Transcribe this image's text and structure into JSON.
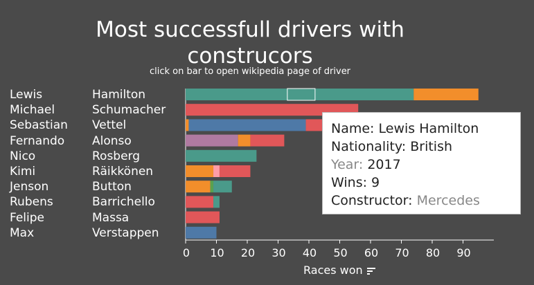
{
  "title_line1": "Most successfull drivers with",
  "title_line2": "construcors",
  "subtitle": "click on bar to open wikipedia page of driver",
  "xlabel": "Races won",
  "tooltip": {
    "name_label": "Name:",
    "name_value": "Lewis Hamilton",
    "nationality_label": "Nationality:",
    "nationality_value": "British",
    "year_label": "Year:",
    "year_value": "2017",
    "wins_label": "Wins:",
    "wins_value": "9",
    "constructor_label": "Constructor:",
    "constructor_value": "Mercedes"
  },
  "colors": {
    "background": "#4a4a4a",
    "mercedes_teal": "#4a9a8a",
    "orange": "#f28e2b",
    "red": "#e15759",
    "blue": "#4e79a7",
    "purple": "#b07aa1",
    "pink": "#ff9da7",
    "green": "#59a14f"
  },
  "chart_data": {
    "type": "bar",
    "orientation": "horizontal",
    "stacked": true,
    "xlabel": "Races won",
    "xlim": [
      0,
      100
    ],
    "xticks": [
      0,
      10,
      20,
      30,
      40,
      50,
      60,
      70,
      80,
      90
    ],
    "drivers": [
      {
        "first": "Lewis",
        "last": "Hamilton",
        "segments": [
          {
            "value": 74,
            "color": "#4a9a8a"
          },
          {
            "value": 21,
            "color": "#f28e2b"
          }
        ]
      },
      {
        "first": "Michael",
        "last": "Schumacher",
        "segments": [
          {
            "value": 56,
            "color": "#e15759"
          }
        ]
      },
      {
        "first": "Sebastian",
        "last": "Vettel",
        "segments": [
          {
            "value": 1,
            "color": "#f28e2b"
          },
          {
            "value": 38,
            "color": "#4e79a7"
          },
          {
            "value": 14,
            "color": "#e15759"
          }
        ]
      },
      {
        "first": "Fernando",
        "last": "Alonso",
        "segments": [
          {
            "value": 17,
            "color": "#b07aa1"
          },
          {
            "value": 4,
            "color": "#f28e2b"
          },
          {
            "value": 11,
            "color": "#e15759"
          }
        ]
      },
      {
        "first": "Nico",
        "last": "Rosberg",
        "segments": [
          {
            "value": 23,
            "color": "#4a9a8a"
          }
        ]
      },
      {
        "first": "Kimi",
        "last": "Räikkönen",
        "segments": [
          {
            "value": 9,
            "color": "#f28e2b"
          },
          {
            "value": 2,
            "color": "#ff9da7"
          },
          {
            "value": 10,
            "color": "#e15759"
          }
        ]
      },
      {
        "first": "Jenson",
        "last": "Button",
        "segments": [
          {
            "value": 8,
            "color": "#f28e2b"
          },
          {
            "value": 1,
            "color": "#59a14f"
          },
          {
            "value": 6,
            "color": "#4a9a8a"
          }
        ]
      },
      {
        "first": "Rubens",
        "last": "Barrichello",
        "segments": [
          {
            "value": 9,
            "color": "#e15759"
          },
          {
            "value": 2,
            "color": "#4a9a8a"
          }
        ]
      },
      {
        "first": "Felipe",
        "last": "Massa",
        "segments": [
          {
            "value": 11,
            "color": "#e15759"
          }
        ]
      },
      {
        "first": "Max",
        "last": "Verstappen",
        "segments": [
          {
            "value": 10,
            "color": "#4e79a7"
          }
        ]
      }
    ],
    "highlighted": {
      "driver": "Lewis Hamilton",
      "year": "2017",
      "wins": 9
    }
  }
}
